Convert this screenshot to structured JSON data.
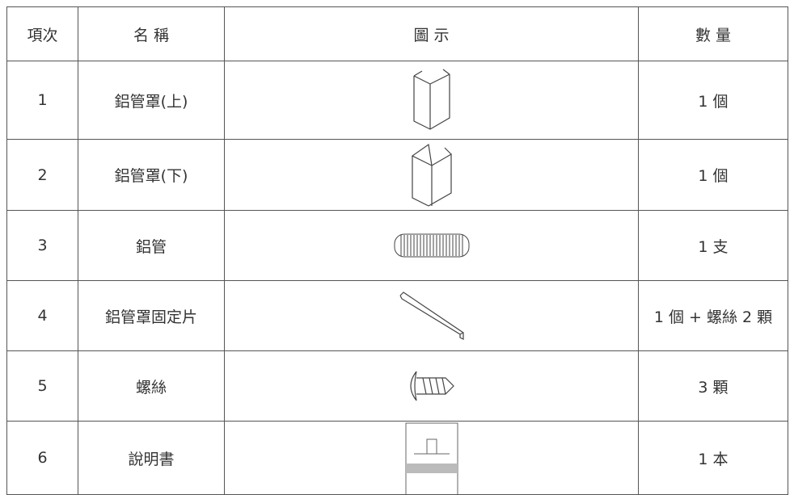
{
  "table": {
    "header": [
      "項次",
      "名 稱",
      "圖 示",
      "數 量"
    ],
    "rows": [
      [
        "1",
        "鋁管罩(上)",
        "1 個"
      ],
      [
        "2",
        "鋁管罩(下)",
        "1 個"
      ],
      [
        "3",
        "鋁管",
        "1 支"
      ],
      [
        "4",
        "鋁管罩固定片",
        "1 個 + 螺絲 2 顆"
      ],
      [
        "5",
        "螺絲",
        "3 顆"
      ],
      [
        "6",
        "說明書",
        "1 本"
      ]
    ]
  }
}
